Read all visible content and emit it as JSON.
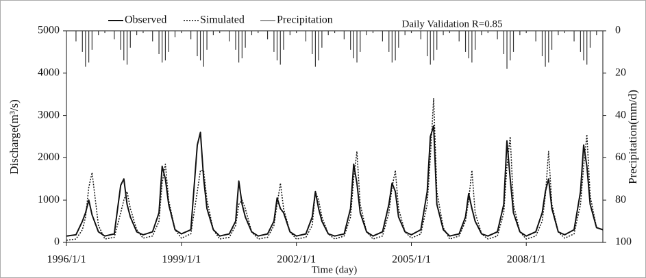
{
  "chart_data": {
    "type": "line",
    "annotation": "Daily Validation  R=0.85",
    "xlabel": "Time (day)",
    "ylabel": "Discharge(m³/s)",
    "y2label": "Precipitation(mm/d)",
    "xlim": [
      "1996/1/1",
      "2009/12/31"
    ],
    "xticks": [
      "1996/1/1",
      "1999/1/1",
      "2002/1/1",
      "2005/1/1",
      "2008/1/1"
    ],
    "ylim": [
      0,
      5000
    ],
    "yticks": [
      0,
      1000,
      2000,
      3000,
      4000,
      5000
    ],
    "y2lim": [
      100,
      0
    ],
    "y2ticks": [
      0,
      20,
      40,
      60,
      80,
      100
    ],
    "x": [
      "1996/1/1",
      "1996/4/1",
      "1996/6/1",
      "1996/7/1",
      "1996/8/1",
      "1996/9/1",
      "1996/11/1",
      "1997/1/1",
      "1997/4/1",
      "1997/6/1",
      "1997/7/1",
      "1997/8/1",
      "1997/9/1",
      "1997/11/1",
      "1998/1/1",
      "1998/4/1",
      "1998/6/1",
      "1998/7/1",
      "1998/8/1",
      "1998/9/1",
      "1998/11/1",
      "1999/1/1",
      "1999/4/1",
      "1999/6/1",
      "1999/7/1",
      "1999/8/1",
      "1999/9/1",
      "1999/11/1",
      "2000/1/1",
      "2000/4/1",
      "2000/6/1",
      "2000/7/1",
      "2000/8/1",
      "2000/9/1",
      "2000/11/1",
      "2001/1/1",
      "2001/4/1",
      "2001/6/1",
      "2001/7/1",
      "2001/8/1",
      "2001/9/1",
      "2001/11/1",
      "2002/1/1",
      "2002/4/1",
      "2002/6/1",
      "2002/7/1",
      "2002/8/1",
      "2002/9/1",
      "2002/11/1",
      "2003/1/1",
      "2003/4/1",
      "2003/6/1",
      "2003/7/1",
      "2003/8/1",
      "2003/9/1",
      "2003/11/1",
      "2004/1/1",
      "2004/4/1",
      "2004/6/1",
      "2004/7/1",
      "2004/8/1",
      "2004/9/1",
      "2004/11/1",
      "2005/1/1",
      "2005/4/1",
      "2005/6/1",
      "2005/7/1",
      "2005/8/1",
      "2005/9/1",
      "2005/11/1",
      "2006/1/1",
      "2006/4/1",
      "2006/6/1",
      "2006/7/1",
      "2006/8/1",
      "2006/9/1",
      "2006/11/1",
      "2007/1/1",
      "2007/4/1",
      "2007/6/1",
      "2007/7/1",
      "2007/8/1",
      "2007/9/1",
      "2007/11/1",
      "2008/1/1",
      "2008/4/1",
      "2008/6/1",
      "2008/7/1",
      "2008/8/1",
      "2008/9/1",
      "2008/11/1",
      "2009/1/1",
      "2009/4/1",
      "2009/6/1",
      "2009/7/1",
      "2009/8/1",
      "2009/9/1",
      "2009/11/1",
      "2009/12/31"
    ],
    "series": [
      {
        "name": "Observed",
        "kind": "line",
        "dash": "solid",
        "color": "#111111",
        "values": [
          150,
          180,
          500,
          700,
          1000,
          650,
          250,
          150,
          200,
          1350,
          1500,
          900,
          600,
          250,
          180,
          250,
          700,
          1800,
          1500,
          900,
          300,
          200,
          300,
          2300,
          2600,
          1500,
          800,
          300,
          150,
          200,
          500,
          1450,
          900,
          600,
          250,
          150,
          200,
          500,
          1050,
          800,
          700,
          250,
          150,
          200,
          600,
          1200,
          800,
          500,
          200,
          150,
          200,
          800,
          1850,
          1400,
          700,
          250,
          150,
          250,
          900,
          1400,
          1200,
          600,
          250,
          180,
          300,
          1200,
          2500,
          2750,
          900,
          300,
          150,
          200,
          600,
          1150,
          800,
          500,
          200,
          150,
          250,
          900,
          2400,
          1500,
          700,
          250,
          150,
          250,
          700,
          1200,
          1500,
          800,
          250,
          180,
          300,
          1200,
          2300,
          1800,
          900,
          350,
          300
        ]
      },
      {
        "name": "Simulated",
        "kind": "line",
        "dash": "dotted",
        "color": "#111111",
        "values": [
          50,
          80,
          300,
          600,
          1300,
          1650,
          400,
          80,
          120,
          700,
          1000,
          1200,
          800,
          300,
          100,
          150,
          500,
          1400,
          1850,
          1000,
          300,
          100,
          200,
          1200,
          1700,
          1700,
          1000,
          300,
          80,
          120,
          400,
          900,
          1000,
          800,
          250,
          80,
          120,
          400,
          900,
          1400,
          800,
          250,
          80,
          120,
          400,
          1200,
          1000,
          600,
          200,
          80,
          150,
          600,
          1500,
          2150,
          900,
          250,
          80,
          150,
          700,
          1300,
          1700,
          800,
          250,
          100,
          200,
          900,
          2000,
          3400,
          1200,
          350,
          80,
          150,
          500,
          1000,
          1700,
          700,
          200,
          80,
          150,
          700,
          1800,
          2500,
          900,
          250,
          80,
          150,
          500,
          1100,
          2150,
          900,
          250,
          100,
          200,
          900,
          1800,
          2550,
          1100,
          350,
          300
        ]
      },
      {
        "name": "Precipitation",
        "kind": "bar",
        "axis": "y2",
        "color": "#333333",
        "values": [
          1,
          5,
          10,
          17,
          15,
          9,
          2,
          1,
          4,
          9,
          14,
          16,
          8,
          2,
          1,
          5,
          11,
          15,
          14,
          10,
          3,
          1,
          4,
          12,
          14,
          17,
          9,
          2,
          1,
          5,
          9,
          15,
          13,
          8,
          2,
          1,
          4,
          10,
          14,
          16,
          9,
          2,
          1,
          5,
          11,
          17,
          14,
          8,
          2,
          1,
          4,
          9,
          13,
          15,
          10,
          2,
          1,
          5,
          10,
          15,
          14,
          8,
          2,
          1,
          4,
          12,
          16,
          14,
          9,
          2,
          1,
          5,
          10,
          13,
          15,
          9,
          2,
          1,
          4,
          11,
          18,
          14,
          10,
          2,
          1,
          5,
          12,
          17,
          15,
          9,
          2,
          1,
          5,
          10,
          14,
          16,
          8,
          2,
          1
        ]
      }
    ]
  }
}
